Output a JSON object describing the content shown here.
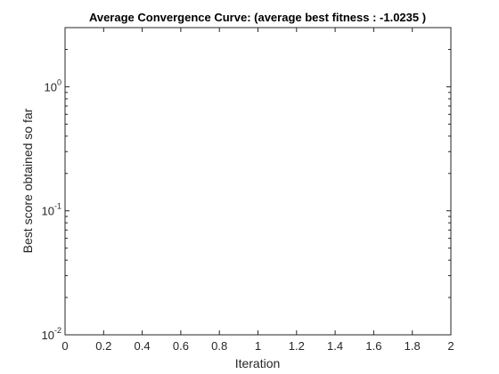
{
  "chart_data": {
    "type": "line",
    "title": "Average Convergence Curve: (average best fitness : -1.0235 )",
    "xlabel": "Iteration",
    "ylabel": "Best score obtained so far",
    "xlim": [
      0,
      2
    ],
    "ylim": [
      0.01,
      3
    ],
    "yscale": "log",
    "grid": false,
    "x_ticks": [
      0,
      0.2,
      0.4,
      0.6,
      0.8,
      1,
      1.2,
      1.4,
      1.6,
      1.8,
      2
    ],
    "x_tick_labels": [
      "0",
      "0.2",
      "0.4",
      "0.6",
      "0.8",
      "1",
      "1.2",
      "1.4",
      "1.6",
      "1.8",
      "2"
    ],
    "y_ticks": [
      0.01,
      0.1,
      1
    ],
    "y_tick_labels": [
      {
        "base": "10",
        "exp": "-2"
      },
      {
        "base": "10",
        "exp": "-1"
      },
      {
        "base": "10",
        "exp": "0"
      }
    ],
    "series": []
  },
  "colors": {
    "axis": "#262626",
    "background": "#ffffff"
  }
}
